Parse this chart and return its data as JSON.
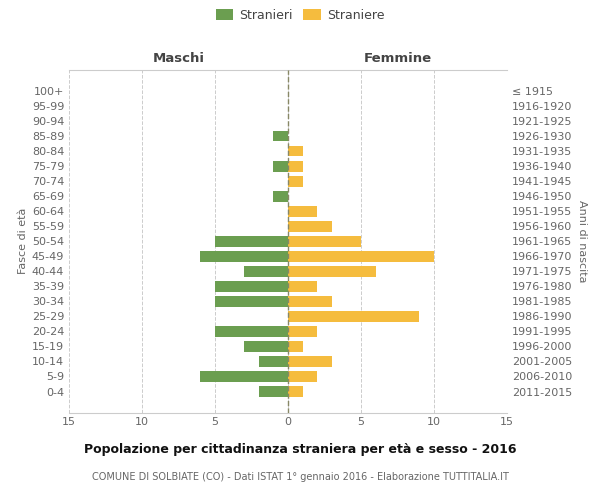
{
  "age_groups": [
    "100+",
    "95-99",
    "90-94",
    "85-89",
    "80-84",
    "75-79",
    "70-74",
    "65-69",
    "60-64",
    "55-59",
    "50-54",
    "45-49",
    "40-44",
    "35-39",
    "30-34",
    "25-29",
    "20-24",
    "15-19",
    "10-14",
    "5-9",
    "0-4"
  ],
  "birth_years": [
    "≤ 1915",
    "1916-1920",
    "1921-1925",
    "1926-1930",
    "1931-1935",
    "1936-1940",
    "1941-1945",
    "1946-1950",
    "1951-1955",
    "1956-1960",
    "1961-1965",
    "1966-1970",
    "1971-1975",
    "1976-1980",
    "1981-1985",
    "1986-1990",
    "1991-1995",
    "1996-2000",
    "2001-2005",
    "2006-2010",
    "2011-2015"
  ],
  "males": [
    0,
    0,
    0,
    1,
    0,
    1,
    0,
    1,
    0,
    0,
    5,
    6,
    3,
    5,
    5,
    0,
    5,
    3,
    2,
    6,
    2
  ],
  "females": [
    0,
    0,
    0,
    0,
    1,
    1,
    1,
    0,
    2,
    3,
    5,
    10,
    6,
    2,
    3,
    9,
    2,
    1,
    3,
    2,
    1
  ],
  "male_color": "#6b9e50",
  "female_color": "#f5bc3e",
  "center_line_color": "#888866",
  "grid_color": "#cccccc",
  "bg_color": "#ffffff",
  "title": "Popolazione per cittadinanza straniera per età e sesso - 2016",
  "subtitle": "COMUNE DI SOLBIATE (CO) - Dati ISTAT 1° gennaio 2016 - Elaborazione TUTTITALIA.IT",
  "xlabel_left": "Maschi",
  "xlabel_right": "Femmine",
  "ylabel_left": "Fasce di età",
  "ylabel_right": "Anni di nascita",
  "legend_male": "Stranieri",
  "legend_female": "Straniere",
  "xlim": 15,
  "tick_fontsize": 8,
  "label_fontsize": 8,
  "header_fontsize": 9.5,
  "title_fontsize": 9,
  "subtitle_fontsize": 7
}
